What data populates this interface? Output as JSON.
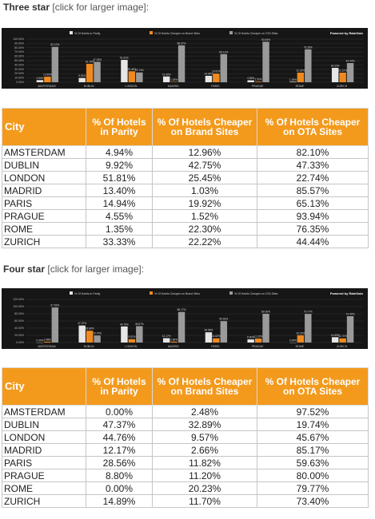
{
  "colors": {
    "orange": "#f39a1d",
    "parity": "#e6e6e6",
    "brand": "#f08a20",
    "ota": "#9a9a9a",
    "chart_bg": "#161616"
  },
  "sections": [
    {
      "title_bold": "Three star",
      "title_link": "[click for larger image]:",
      "table": {
        "headers": [
          "City",
          "% Of Hotels in Parity",
          "% Of Hotels Cheaper on Brand Sites",
          "% Of Hotels Cheaper on OTA Sites"
        ],
        "rows": [
          [
            "AMSTERDAM",
            "4.94%",
            "12.96%",
            "82.10%"
          ],
          [
            "DUBLIN",
            "9.92%",
            "42.75%",
            "47.33%"
          ],
          [
            "LONDON",
            "51.81%",
            "25.45%",
            "22.74%"
          ],
          [
            "MADRID",
            "13.40%",
            "1.03%",
            "85.57%"
          ],
          [
            "PARIS",
            "14.94%",
            "19.92%",
            "65.13%"
          ],
          [
            "PRAGUE",
            "4.55%",
            "1.52%",
            "93.94%"
          ],
          [
            "ROME",
            "1.35%",
            "22.30%",
            "76.35%"
          ],
          [
            "ZURICH",
            "33.33%",
            "22.22%",
            "44.44%"
          ]
        ]
      }
    },
    {
      "title_bold": "Four star",
      "title_link": "[click for larger image]:",
      "table": {
        "headers": [
          "City",
          "% Of Hotels in Parity",
          "% Of Hotels Cheaper on Brand Sites",
          "% Of Hotels Cheaper on OTA Sites"
        ],
        "rows": [
          [
            "AMSTERDAM",
            "0.00%",
            "2.48%",
            "97.52%"
          ],
          [
            "DUBLIN",
            "47.37%",
            "32.89%",
            "19.74%"
          ],
          [
            "LONDON",
            "44.76%",
            "9.57%",
            "45.67%"
          ],
          [
            "MADRID",
            "12.17%",
            "2.66%",
            "85.17%"
          ],
          [
            "PARIS",
            "28.56%",
            "11.82%",
            "59.63%"
          ],
          [
            "PRAGUE",
            "8.80%",
            "11.20%",
            "80.00%"
          ],
          [
            "ROME",
            "0.00%",
            "20.23%",
            "79.77%"
          ],
          [
            "ZURICH",
            "14.89%",
            "11.70%",
            "73.40%"
          ]
        ]
      }
    }
  ],
  "chart_data": [
    {
      "type": "bar",
      "categories": [
        "AMSTERDAM",
        "DUBLIN",
        "LONDON",
        "MADRID",
        "PARIS",
        "PRAGUE",
        "ROME",
        "ZURICH"
      ],
      "series": [
        {
          "name": "% Of Hotels in Parity",
          "values": [
            4.94,
            9.92,
            51.81,
            13.4,
            14.94,
            4.55,
            1.35,
            33.33
          ]
        },
        {
          "name": "% Of Hotels Cheaper on Brand Sites",
          "values": [
            12.96,
            42.75,
            25.45,
            1.03,
            19.92,
            1.52,
            22.3,
            22.22
          ]
        },
        {
          "name": "% Of Hotels Cheaper on OTA Sites",
          "values": [
            82.1,
            47.33,
            22.74,
            85.57,
            65.13,
            93.94,
            76.35,
            44.44
          ]
        }
      ],
      "ylim": [
        0,
        100
      ],
      "yticks": [
        "0.00%",
        "10.00%",
        "20.00%",
        "30.00%",
        "40.00%",
        "50.00%",
        "60.00%",
        "70.00%",
        "80.00%",
        "90.00%",
        "100.00%"
      ],
      "legend_position": "top",
      "credit": "Powered by RateGain"
    },
    {
      "type": "bar",
      "categories": [
        "AMSTERDAM",
        "DUBLIN",
        "LONDON",
        "MADRID",
        "PARIS",
        "PRAGUE",
        "ROME",
        "ZURICH"
      ],
      "series": [
        {
          "name": "% Of Hotels in Parity",
          "values": [
            0.0,
            47.37,
            44.76,
            12.17,
            28.56,
            8.8,
            0.0,
            14.89
          ]
        },
        {
          "name": "% Of Hotels Cheaper on Brand Sites",
          "values": [
            2.48,
            32.89,
            9.57,
            2.66,
            11.82,
            11.2,
            20.23,
            11.7
          ]
        },
        {
          "name": "% Of Hotels Cheaper on OTA Sites",
          "values": [
            97.52,
            19.74,
            45.67,
            85.17,
            59.63,
            80.0,
            79.77,
            73.4
          ]
        }
      ],
      "ylim": [
        0,
        120
      ],
      "yticks": [
        "0.00%",
        "20.00%",
        "40.00%",
        "60.00%",
        "80.00%",
        "100.00%",
        "120.00%"
      ],
      "legend_position": "top",
      "credit": "Powered by RateGain"
    }
  ]
}
